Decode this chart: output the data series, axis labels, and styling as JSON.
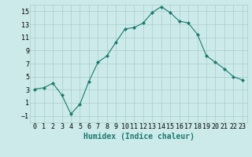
{
  "x": [
    0,
    1,
    2,
    3,
    4,
    5,
    6,
    7,
    8,
    9,
    10,
    11,
    12,
    13,
    14,
    15,
    16,
    17,
    18,
    19,
    20,
    21,
    22,
    23
  ],
  "y": [
    3.1,
    3.3,
    4.0,
    2.2,
    -0.7,
    0.8,
    4.3,
    7.2,
    8.2,
    10.3,
    12.3,
    12.5,
    13.2,
    14.8,
    15.7,
    14.8,
    13.5,
    13.2,
    11.5,
    8.2,
    7.2,
    6.2,
    5.0,
    4.5
  ],
  "line_color": "#1a7a6e",
  "marker": "D",
  "marker_size": 2.0,
  "bg_color": "#cceaea",
  "grid_color": "#aacccc",
  "xlabel": "Humidex (Indice chaleur)",
  "ylim": [
    -2,
    16
  ],
  "xlim": [
    -0.5,
    23.5
  ],
  "yticks": [
    -1,
    1,
    3,
    5,
    7,
    9,
    11,
    13,
    15
  ],
  "xtick_labels": [
    "0",
    "1",
    "2",
    "3",
    "4",
    "5",
    "6",
    "7",
    "8",
    "9",
    "10",
    "11",
    "12",
    "13",
    "14",
    "15",
    "16",
    "17",
    "18",
    "19",
    "20",
    "21",
    "22",
    "23"
  ],
  "xlabel_fontsize": 7,
  "tick_fontsize": 6
}
